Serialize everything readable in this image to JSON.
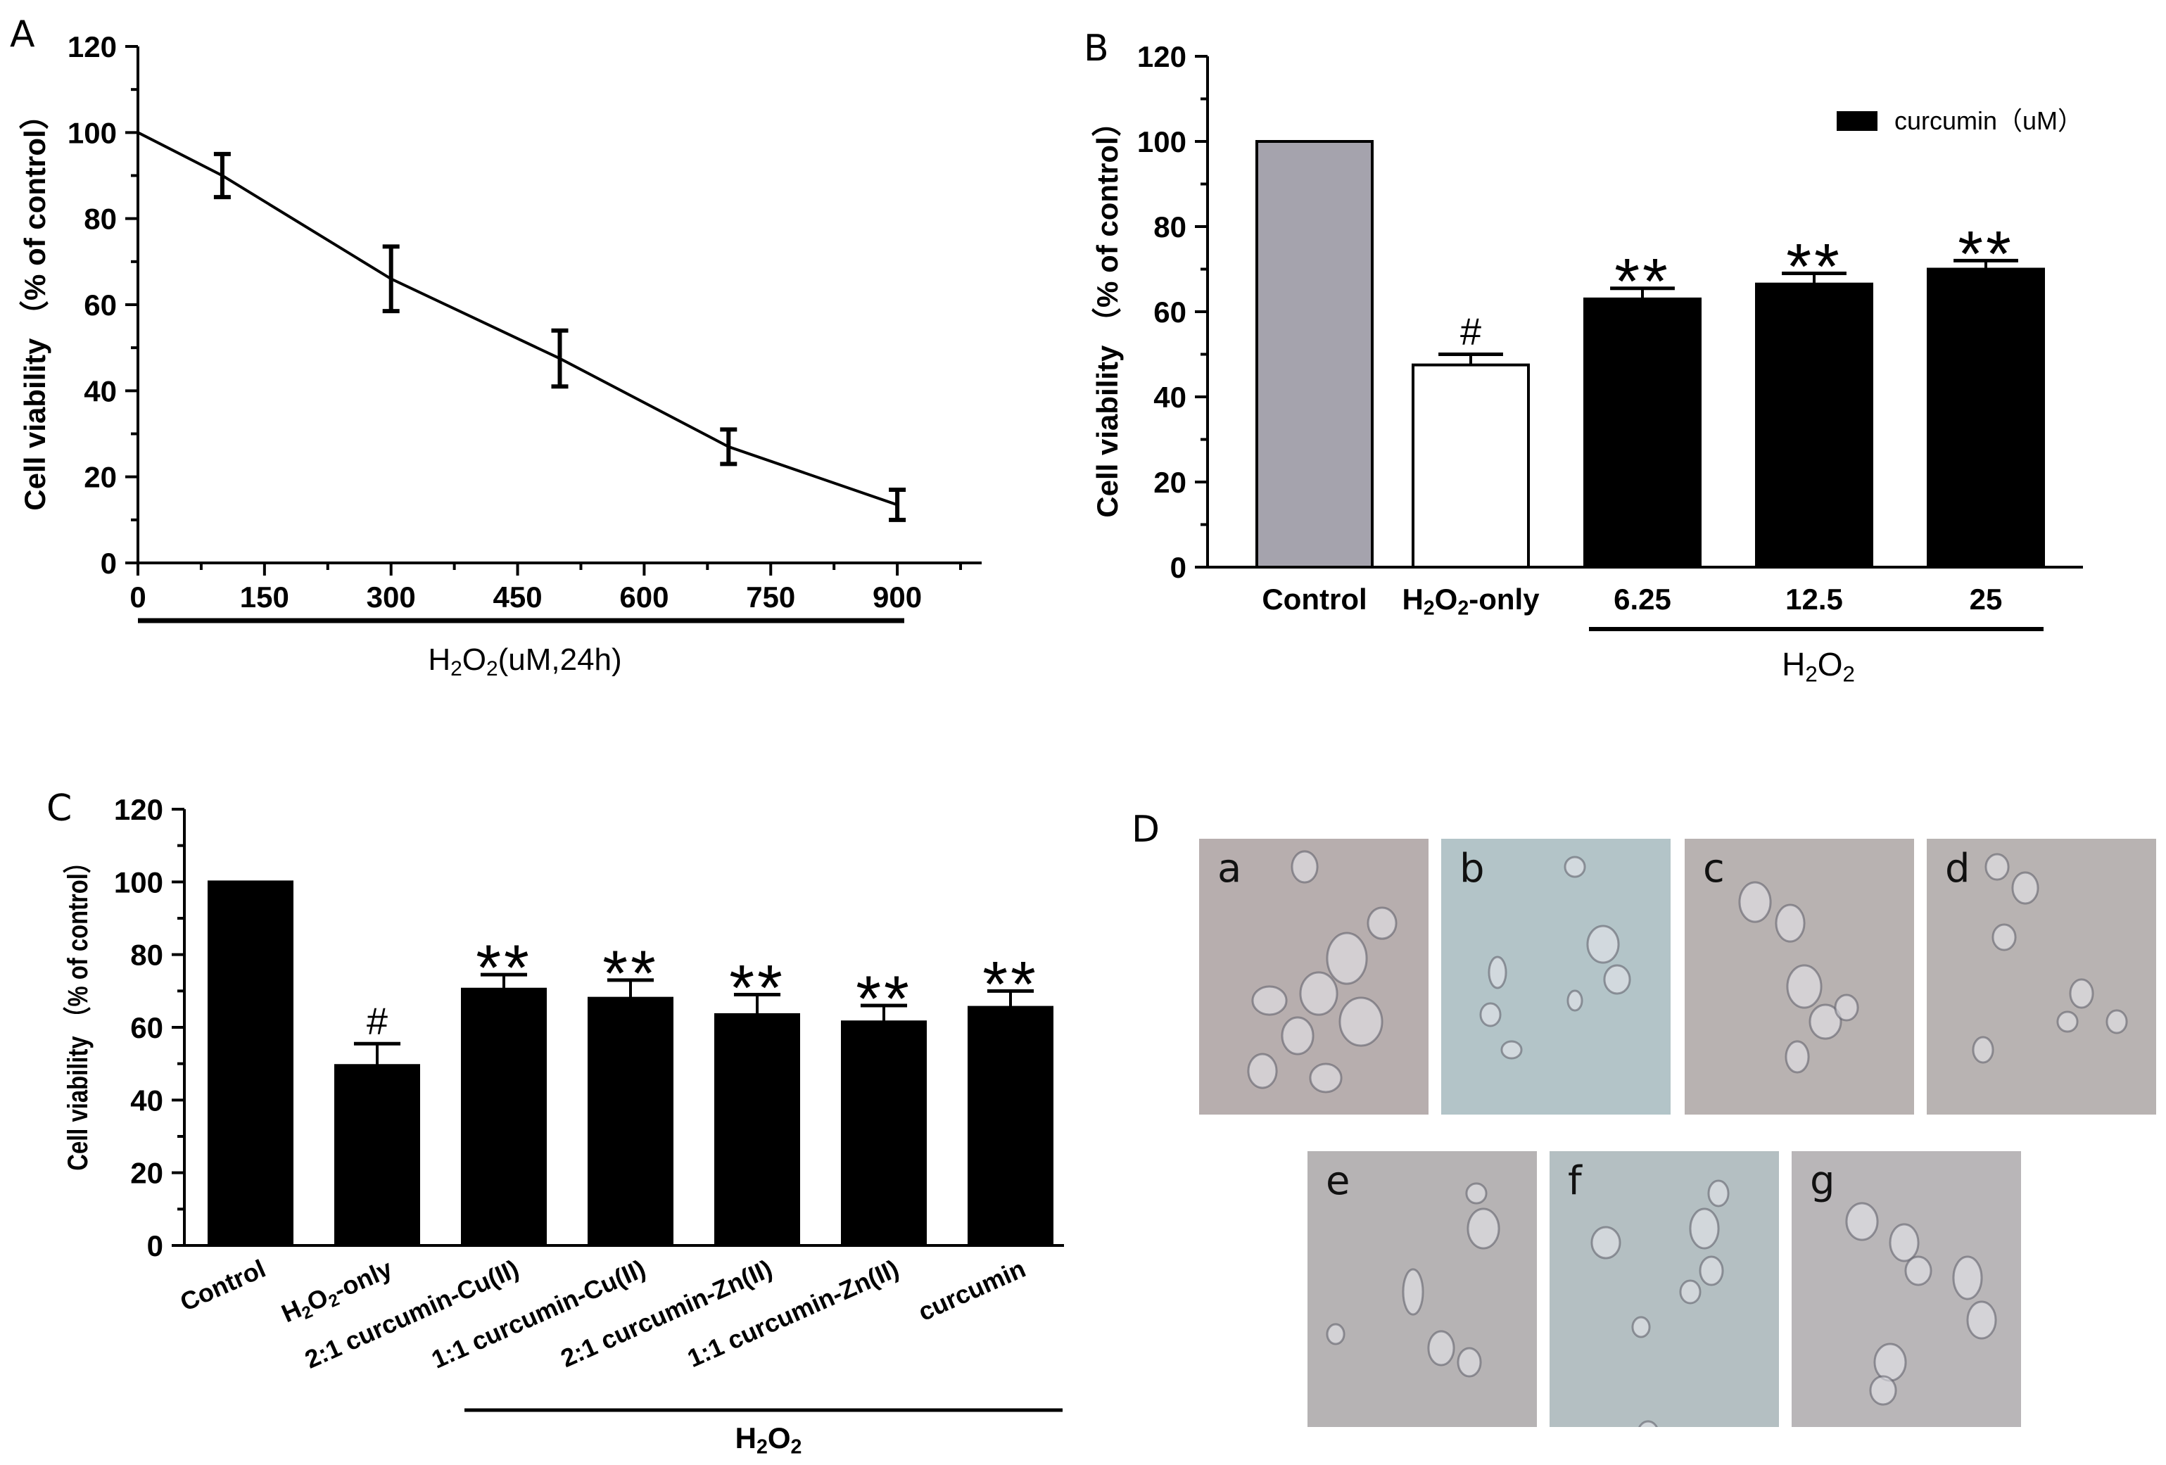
{
  "chart_data": [
    {
      "panel": "A",
      "type": "line",
      "x": [
        0,
        100,
        300,
        500,
        700,
        900
      ],
      "y": [
        100,
        90,
        66,
        47.5,
        27,
        13.5
      ],
      "err": [
        0,
        5,
        7.5,
        6.5,
        4,
        3.5
      ],
      "xticks": [
        "0",
        "150",
        "300",
        "450",
        "600",
        "750",
        "900"
      ],
      "xtick_values": [
        0,
        150,
        300,
        450,
        600,
        750,
        900
      ],
      "yticks": [
        "0",
        "20",
        "40",
        "60",
        "80",
        "100",
        "120"
      ],
      "ytick_values": [
        0,
        20,
        40,
        60,
        80,
        100,
        120
      ],
      "xlim": [
        0,
        1000
      ],
      "ylim": [
        0,
        120
      ],
      "ylabel": "Cell viability （% of control）",
      "xlabel": "H2O2(uM,24h)",
      "color": "#000000"
    },
    {
      "panel": "B",
      "type": "bar",
      "categories": [
        "Control",
        "H2O2-only",
        "6.25",
        "12.5",
        "25"
      ],
      "values": [
        100,
        47.5,
        63,
        66.5,
        70
      ],
      "err": [
        0,
        2.5,
        2.5,
        2.5,
        2
      ],
      "annotations": [
        "",
        "#",
        "**",
        "**",
        "**"
      ],
      "colors": [
        "#a5a3ad",
        "#ffffff",
        "#000000",
        "#000000",
        "#000000"
      ],
      "yticks": [
        "0",
        "20",
        "40",
        "60",
        "80",
        "100",
        "120"
      ],
      "ytick_values": [
        0,
        20,
        40,
        60,
        80,
        100,
        120
      ],
      "ylim": [
        0,
        120
      ],
      "ylabel": "Cell viability （% of control）",
      "group_label": "H2O2",
      "legend": "curcumin（uM）",
      "legend_color": "#000000"
    },
    {
      "panel": "C",
      "type": "bar",
      "categories": [
        "Control",
        "H2O2-only",
        "2:1 curcumin-Cu(II)",
        "1:1 curcumin-Cu(II)",
        "2:1 curcumin-Zn(II)",
        "1:1 curcumin-Zn(II)",
        "curcumin"
      ],
      "values": [
        100,
        49.5,
        70.5,
        68,
        63.5,
        61.5,
        65.5
      ],
      "err": [
        0,
        6,
        4,
        5,
        5.5,
        4.5,
        4.5
      ],
      "annotations": [
        "",
        "#",
        "**",
        "**",
        "**",
        "**",
        "**"
      ],
      "colors": [
        "#000000",
        "#000000",
        "#000000",
        "#000000",
        "#000000",
        "#000000",
        "#000000"
      ],
      "yticks": [
        "0",
        "20",
        "40",
        "60",
        "80",
        "100",
        "120"
      ],
      "ytick_values": [
        0,
        20,
        40,
        60,
        80,
        100,
        120
      ],
      "ylim": [
        0,
        120
      ],
      "ylabel": "Cell viability （% of control）",
      "group_label": "H2O2"
    }
  ],
  "panels": {
    "a": "A",
    "b": "B",
    "c": "C",
    "d": "D"
  },
  "micrographs": [
    {
      "label": "a",
      "tone": "#b7aeae"
    },
    {
      "label": "b",
      "tone": "#b3c4c8"
    },
    {
      "label": "c",
      "tone": "#b8b2b1"
    },
    {
      "label": "d",
      "tone": "#b8b3b2"
    },
    {
      "label": "e",
      "tone": "#b6b3b4"
    },
    {
      "label": "f",
      "tone": "#b4bfc2"
    },
    {
      "label": "g",
      "tone": "#b9b6b8"
    }
  ]
}
